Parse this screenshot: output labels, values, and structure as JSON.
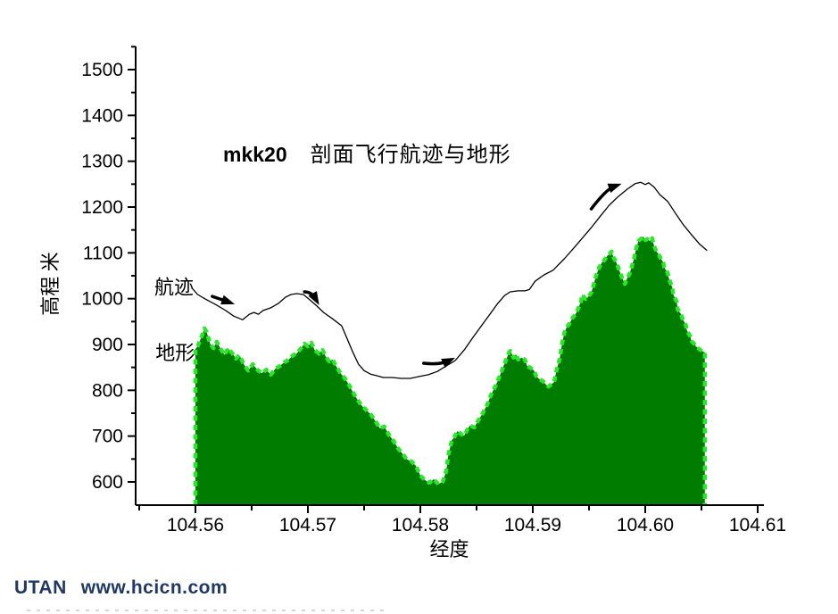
{
  "watermark": {
    "brand": "UTAN",
    "url": "www.hcicn.com",
    "color": "#1f3864"
  },
  "chart_data": {
    "type": "area",
    "title_bold": "mkk20",
    "title": "剖面飞行航迹与地形",
    "xlabel": "经度",
    "ylabel": "高程 米",
    "xlim": [
      104.5547,
      104.6105
    ],
    "ylim": [
      550,
      1550
    ],
    "grid": false,
    "legend_position": "none",
    "x_axis": {
      "ticks": [
        104.56,
        104.57,
        104.58,
        104.59,
        104.6,
        104.61
      ],
      "tick_labels": [
        "104.56",
        "104.57",
        "104.58",
        "104.59",
        "104.60",
        "104.61"
      ],
      "minor_ticks": [
        104.555,
        104.565,
        104.575,
        104.585,
        104.595,
        104.605
      ]
    },
    "y_axis": {
      "ticks": [
        600,
        700,
        800,
        900,
        1000,
        1100,
        1200,
        1300,
        1400,
        1500
      ],
      "tick_labels": [
        "600",
        "700",
        "800",
        "900",
        "1000",
        "1100",
        "1200",
        "1300",
        "1400",
        "1500"
      ],
      "minor_ticks": [
        650,
        750,
        850,
        950,
        1050,
        1150,
        1250,
        1350,
        1450,
        1550
      ]
    },
    "colors": {
      "terrain_fill": "#007d00",
      "terrain_edge": "#2ce62c",
      "track_line": "#000000"
    },
    "annotations": [
      {
        "text": "航迹",
        "x": 104.5581,
        "y": 1026
      },
      {
        "text": "地形",
        "x": 104.5582,
        "y": 882
      }
    ],
    "arrows": [
      {
        "tail": [
          104.5615,
          1005
        ],
        "head": [
          104.5635,
          988
        ],
        "bow": [
          0,
          0
        ]
      },
      {
        "tail": [
          104.5697,
          1015
        ],
        "head": [
          104.571,
          986
        ],
        "bow": [
          0,
          -7
        ]
      },
      {
        "tail": [
          104.5803,
          859
        ],
        "head": [
          104.5831,
          871
        ],
        "bow": [
          0,
          5
        ]
      },
      {
        "tail": [
          104.5952,
          1196
        ],
        "head": [
          104.5979,
          1251
        ],
        "bow": [
          0,
          -8
        ]
      }
    ],
    "series": [
      {
        "name": "航迹",
        "type": "line",
        "points": [
          [
            104.5597,
            1023
          ],
          [
            104.5602,
            1009
          ],
          [
            104.5609,
            999
          ],
          [
            104.5619,
            986
          ],
          [
            104.5627,
            974
          ],
          [
            104.5634,
            962
          ],
          [
            104.5642,
            954
          ],
          [
            104.5648,
            966
          ],
          [
            104.5652,
            970
          ],
          [
            104.5656,
            966
          ],
          [
            104.566,
            974
          ],
          [
            104.5667,
            980
          ],
          [
            104.5674,
            990
          ],
          [
            104.568,
            1003
          ],
          [
            104.5685,
            1009
          ],
          [
            104.569,
            1011
          ],
          [
            104.5696,
            1009
          ],
          [
            104.5702,
            997
          ],
          [
            104.5708,
            984
          ],
          [
            104.5714,
            970
          ],
          [
            104.5722,
            956
          ],
          [
            104.573,
            941
          ],
          [
            104.5734,
            918
          ],
          [
            104.574,
            883
          ],
          [
            104.5745,
            857
          ],
          [
            104.575,
            843
          ],
          [
            104.5756,
            835
          ],
          [
            104.5761,
            832
          ],
          [
            104.5767,
            828
          ],
          [
            104.5775,
            828
          ],
          [
            104.5783,
            826
          ],
          [
            104.5791,
            826
          ],
          [
            104.5799,
            830
          ],
          [
            104.5807,
            834
          ],
          [
            104.5815,
            841
          ],
          [
            104.5823,
            853
          ],
          [
            104.5831,
            865
          ],
          [
            104.5839,
            888
          ],
          [
            104.5847,
            916
          ],
          [
            104.5855,
            943
          ],
          [
            104.5863,
            970
          ],
          [
            104.5869,
            990
          ],
          [
            104.5875,
            1007
          ],
          [
            104.588,
            1015
          ],
          [
            104.5887,
            1017
          ],
          [
            104.5893,
            1017
          ],
          [
            104.5897,
            1020
          ],
          [
            104.5902,
            1038
          ],
          [
            104.591,
            1052
          ],
          [
            104.5918,
            1062
          ],
          [
            104.5928,
            1087
          ],
          [
            104.5937,
            1112
          ],
          [
            104.5944,
            1132
          ],
          [
            104.5952,
            1155
          ],
          [
            104.596,
            1180
          ],
          [
            104.5968,
            1204
          ],
          [
            104.5976,
            1223
          ],
          [
            104.5984,
            1239
          ],
          [
            104.5991,
            1251
          ],
          [
            104.5996,
            1254
          ],
          [
            104.6,
            1249
          ],
          [
            104.6003,
            1253
          ],
          [
            104.6008,
            1243
          ],
          [
            104.6013,
            1227
          ],
          [
            104.602,
            1212
          ],
          [
            104.6027,
            1186
          ],
          [
            104.6034,
            1161
          ],
          [
            104.6041,
            1140
          ],
          [
            104.6048,
            1120
          ],
          [
            104.6055,
            1105
          ]
        ]
      },
      {
        "name": "地形",
        "type": "area",
        "points": [
          [
            104.56,
            890
          ],
          [
            104.5602,
            896
          ],
          [
            104.5606,
            921
          ],
          [
            104.5608,
            935
          ],
          [
            104.561,
            927
          ],
          [
            104.5613,
            902
          ],
          [
            104.5616,
            892
          ],
          [
            104.5619,
            906
          ],
          [
            104.5623,
            888
          ],
          [
            104.5626,
            877
          ],
          [
            104.5629,
            892
          ],
          [
            104.5633,
            880
          ],
          [
            104.5636,
            869
          ],
          [
            104.5639,
            877
          ],
          [
            104.5643,
            857
          ],
          [
            104.5647,
            843
          ],
          [
            104.5651,
            857
          ],
          [
            104.5655,
            845
          ],
          [
            104.5659,
            837
          ],
          [
            104.5663,
            845
          ],
          [
            104.5667,
            834
          ],
          [
            104.5671,
            847
          ],
          [
            104.5675,
            853
          ],
          [
            104.5679,
            861
          ],
          [
            104.5683,
            867
          ],
          [
            104.5687,
            877
          ],
          [
            104.569,
            880
          ],
          [
            104.5694,
            892
          ],
          [
            104.5697,
            902
          ],
          [
            104.57,
            896
          ],
          [
            104.5703,
            904
          ],
          [
            104.5706,
            888
          ],
          [
            104.571,
            880
          ],
          [
            104.5713,
            888
          ],
          [
            104.5716,
            873
          ],
          [
            104.5719,
            863
          ],
          [
            104.5722,
            867
          ],
          [
            104.5725,
            853
          ],
          [
            104.5729,
            837
          ],
          [
            104.5733,
            826
          ],
          [
            104.5737,
            810
          ],
          [
            104.574,
            796
          ],
          [
            104.5744,
            780
          ],
          [
            104.5748,
            766
          ],
          [
            104.5752,
            757
          ],
          [
            104.5756,
            747
          ],
          [
            104.576,
            733
          ],
          [
            104.5764,
            717
          ],
          [
            104.5768,
            721
          ],
          [
            104.5772,
            703
          ],
          [
            104.5776,
            690
          ],
          [
            104.578,
            674
          ],
          [
            104.5784,
            662
          ],
          [
            104.5788,
            649
          ],
          [
            104.5792,
            645
          ],
          [
            104.5796,
            635
          ],
          [
            104.58,
            614
          ],
          [
            104.5804,
            604
          ],
          [
            104.5808,
            598
          ],
          [
            104.5812,
            606
          ],
          [
            104.5816,
            595
          ],
          [
            104.582,
            601
          ],
          [
            104.5823,
            624
          ],
          [
            104.5825,
            660
          ],
          [
            104.5828,
            691
          ],
          [
            104.583,
            697
          ],
          [
            104.5833,
            711
          ],
          [
            104.5837,
            703
          ],
          [
            104.5839,
            701
          ],
          [
            104.5842,
            715
          ],
          [
            104.5844,
            723
          ],
          [
            104.5848,
            719
          ],
          [
            104.5851,
            732
          ],
          [
            104.5855,
            748
          ],
          [
            104.5859,
            766
          ],
          [
            104.5863,
            791
          ],
          [
            104.5867,
            810
          ],
          [
            104.5871,
            834
          ],
          [
            104.5875,
            859
          ],
          [
            104.5879,
            883
          ],
          [
            104.588,
            886
          ],
          [
            104.5883,
            871
          ],
          [
            104.5885,
            879
          ],
          [
            104.5887,
            867
          ],
          [
            104.589,
            871
          ],
          [
            104.5893,
            867
          ],
          [
            104.5895,
            853
          ],
          [
            104.5898,
            849
          ],
          [
            104.5901,
            843
          ],
          [
            104.5903,
            831
          ],
          [
            104.5906,
            824
          ],
          [
            104.5909,
            820
          ],
          [
            104.5912,
            812
          ],
          [
            104.5914,
            808
          ],
          [
            104.5917,
            814
          ],
          [
            104.5919,
            818
          ],
          [
            104.5921,
            843
          ],
          [
            104.5924,
            869
          ],
          [
            104.5926,
            902
          ],
          [
            104.5928,
            925
          ],
          [
            104.593,
            937
          ],
          [
            104.5933,
            947
          ],
          [
            104.5935,
            957
          ],
          [
            104.5938,
            966
          ],
          [
            104.594,
            976
          ],
          [
            104.5943,
            995
          ],
          [
            104.5944,
            1009
          ],
          [
            104.5947,
            999
          ],
          [
            104.5949,
            1003
          ],
          [
            104.5952,
            1013
          ],
          [
            104.5954,
            1029
          ],
          [
            104.5956,
            1048
          ],
          [
            104.5959,
            1068
          ],
          [
            104.5961,
            1077
          ],
          [
            104.5964,
            1085
          ],
          [
            104.5966,
            1093
          ],
          [
            104.5968,
            1097
          ],
          [
            104.597,
            1103
          ],
          [
            104.5972,
            1089
          ],
          [
            104.5974,
            1081
          ],
          [
            104.5976,
            1068
          ],
          [
            104.5978,
            1054
          ],
          [
            104.598,
            1042
          ],
          [
            104.5982,
            1032
          ],
          [
            104.5983,
            1040
          ],
          [
            104.5986,
            1054
          ],
          [
            104.5988,
            1070
          ],
          [
            104.599,
            1087
          ],
          [
            104.5992,
            1110
          ],
          [
            104.5994,
            1126
          ],
          [
            104.5996,
            1130
          ],
          [
            104.5998,
            1136
          ],
          [
            104.6,
            1128
          ],
          [
            104.6002,
            1130
          ],
          [
            104.6004,
            1126
          ],
          [
            104.6006,
            1132
          ],
          [
            104.6008,
            1114
          ],
          [
            104.601,
            1103
          ],
          [
            104.6012,
            1097
          ],
          [
            104.6013,
            1091
          ],
          [
            104.6016,
            1079
          ],
          [
            104.6017,
            1068
          ],
          [
            104.602,
            1056
          ],
          [
            104.6021,
            1044
          ],
          [
            104.6024,
            1025
          ],
          [
            104.6025,
            1009
          ],
          [
            104.6028,
            993
          ],
          [
            104.6029,
            976
          ],
          [
            104.6032,
            966
          ],
          [
            104.6033,
            957
          ],
          [
            104.6036,
            943
          ],
          [
            104.6037,
            931
          ],
          [
            104.604,
            918
          ],
          [
            104.6041,
            908
          ],
          [
            104.6044,
            900
          ],
          [
            104.6045,
            896
          ],
          [
            104.6048,
            890
          ],
          [
            104.6049,
            888
          ],
          [
            104.6052,
            884
          ],
          [
            104.6053,
            883
          ]
        ]
      }
    ]
  }
}
